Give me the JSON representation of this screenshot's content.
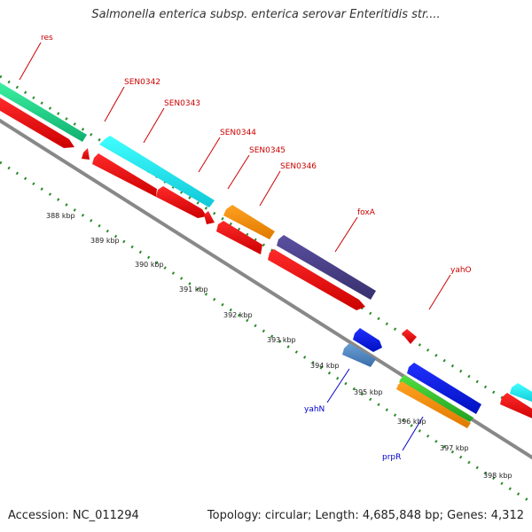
{
  "title": "Salmonella enterica subsp. enterica serovar Enteritidis str....",
  "footer": {
    "accession": "Accession: NC_011294",
    "stats": "Topology: circular; Length: 4,685,848 bp; Genes: 4,312"
  },
  "colors": {
    "backbone": "#888888",
    "tick_dots": "#2a8a2a",
    "label_red": "#cc0000",
    "label_blue": "#0000cc"
  },
  "kbp_labels": [
    "388 kbp",
    "389 kbp",
    "390 kbp",
    "391 kbp",
    "392 kbp",
    "393 kbp",
    "394 kbp",
    "395 kbp",
    "396 kbp",
    "397 kbp",
    "398 kbp"
  ],
  "gene_labels": [
    {
      "name": "res",
      "color": "red"
    },
    {
      "name": "SEN0342",
      "color": "red"
    },
    {
      "name": "SEN0343",
      "color": "red"
    },
    {
      "name": "SEN0344",
      "color": "red"
    },
    {
      "name": "SEN0345",
      "color": "red"
    },
    {
      "name": "SEN0346",
      "color": "red"
    },
    {
      "name": "foxA",
      "color": "red"
    },
    {
      "name": "yahO",
      "color": "red"
    },
    {
      "name": "yahN",
      "color": "blue"
    },
    {
      "name": "prpR",
      "color": "blue"
    }
  ]
}
